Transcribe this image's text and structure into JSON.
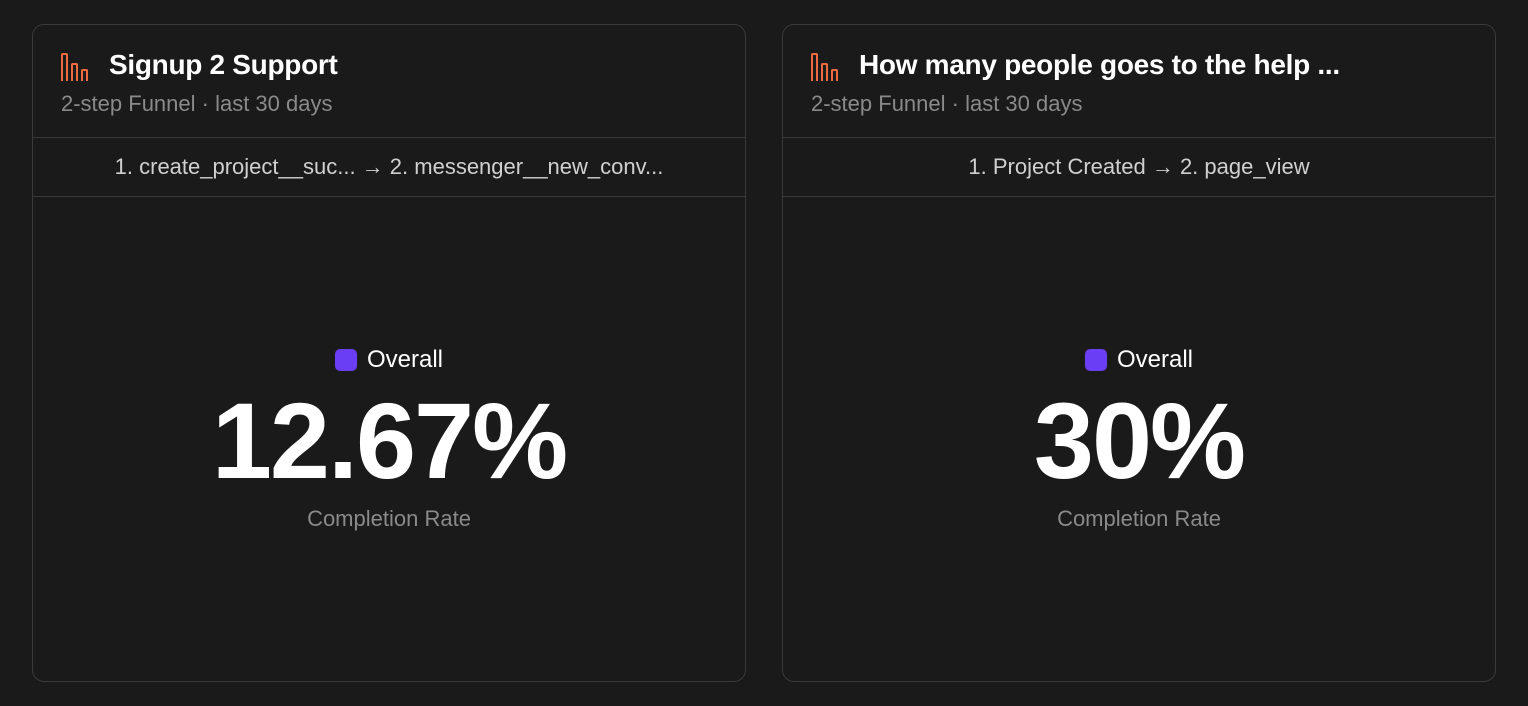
{
  "colors": {
    "background": "#1a1a1a",
    "card_border": "#3a3a3a",
    "text_primary": "#ffffff",
    "text_secondary": "#8a8a8a",
    "text_tertiary": "#d0d0d0",
    "icon_accent": "#ed6b3f",
    "badge_purple": "#6a3ef5"
  },
  "typography": {
    "title_fontsize": 28,
    "subtitle_fontsize": 22,
    "steps_fontsize": 22,
    "overall_fontsize": 24,
    "metric_fontsize": 108,
    "metric_label_fontsize": 22
  },
  "cards": [
    {
      "title": "Signup 2 Support",
      "subtitle": "2-step Funnel · last 30 days",
      "steps": "1. create_project__suc... → 2. messenger__new_conv...",
      "overall_label": "Overall",
      "metric_value": "12.67%",
      "metric_label": "Completion Rate"
    },
    {
      "title": "How many people goes to the help ...",
      "subtitle": "2-step Funnel · last 30 days",
      "steps": "1. Project Created → 2. page_view",
      "overall_label": "Overall",
      "metric_value": "30%",
      "metric_label": "Completion Rate"
    }
  ]
}
